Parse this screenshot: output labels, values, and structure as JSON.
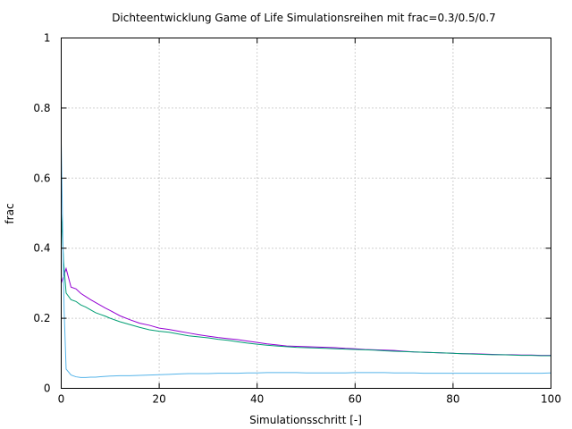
{
  "chart_data": {
    "type": "line",
    "title": "Dichteentwicklung Game of Life Simulationsreihen mit frac=0.3/0.5/0.7",
    "xlabel": "Simulationsschritt [-]",
    "ylabel": "frac",
    "xlim": [
      0,
      100
    ],
    "ylim": [
      0,
      1
    ],
    "xticks": [
      0,
      20,
      40,
      60,
      80,
      100
    ],
    "yticks": [
      0,
      0.2,
      0.4,
      0.6,
      0.8,
      1
    ],
    "xtick_labels": [
      "0",
      "20",
      "40",
      "60",
      "80",
      "100"
    ],
    "ytick_labels": [
      "0",
      "0.2",
      "0.4",
      "0.6",
      "0.8",
      "1"
    ],
    "grid": true,
    "legend": "none",
    "series": [
      {
        "color": "#9400d3",
        "x": [
          0,
          1,
          2,
          3,
          4,
          5,
          6,
          7,
          8,
          9,
          10,
          12,
          14,
          16,
          18,
          20,
          22,
          24,
          26,
          28,
          30,
          32,
          34,
          36,
          38,
          40,
          42,
          44,
          46,
          48,
          50,
          52,
          54,
          56,
          58,
          60,
          62,
          64,
          66,
          68,
          70,
          72,
          74,
          76,
          78,
          80,
          82,
          84,
          86,
          88,
          90,
          92,
          94,
          96,
          98,
          100
        ],
        "y": [
          0.3,
          0.342,
          0.289,
          0.284,
          0.271,
          0.262,
          0.253,
          0.245,
          0.237,
          0.229,
          0.222,
          0.207,
          0.196,
          0.186,
          0.18,
          0.172,
          0.168,
          0.163,
          0.158,
          0.153,
          0.149,
          0.145,
          0.142,
          0.139,
          0.135,
          0.131,
          0.127,
          0.124,
          0.121,
          0.12,
          0.119,
          0.118,
          0.117,
          0.116,
          0.114,
          0.113,
          0.111,
          0.11,
          0.109,
          0.108,
          0.106,
          0.104,
          0.103,
          0.102,
          0.101,
          0.1,
          0.099,
          0.099,
          0.098,
          0.097,
          0.096,
          0.096,
          0.095,
          0.095,
          0.094,
          0.094
        ]
      },
      {
        "color": "#009e73",
        "x": [
          0,
          0.5,
          1,
          2,
          3,
          4,
          5,
          6,
          7,
          8,
          9,
          10,
          12,
          14,
          16,
          18,
          20,
          22,
          24,
          26,
          28,
          30,
          32,
          34,
          36,
          38,
          40,
          42,
          44,
          46,
          48,
          50,
          52,
          54,
          56,
          58,
          60,
          62,
          64,
          66,
          68,
          70,
          72,
          74,
          76,
          78,
          80,
          82,
          84,
          86,
          88,
          90,
          92,
          94,
          96,
          98,
          100
        ],
        "y": [
          0.5,
          0.36,
          0.272,
          0.253,
          0.248,
          0.238,
          0.232,
          0.224,
          0.216,
          0.211,
          0.206,
          0.2,
          0.19,
          0.182,
          0.174,
          0.167,
          0.163,
          0.16,
          0.155,
          0.15,
          0.147,
          0.144,
          0.14,
          0.137,
          0.133,
          0.129,
          0.126,
          0.123,
          0.121,
          0.119,
          0.117,
          0.116,
          0.115,
          0.114,
          0.113,
          0.112,
          0.111,
          0.11,
          0.109,
          0.107,
          0.106,
          0.105,
          0.104,
          0.103,
          0.102,
          0.101,
          0.1,
          0.099,
          0.098,
          0.097,
          0.096,
          0.096,
          0.095,
          0.094,
          0.094,
          0.093,
          0.093
        ]
      },
      {
        "color": "#56b4e9",
        "x": [
          0,
          0.3,
          0.6,
          1,
          2,
          3,
          4,
          5,
          6,
          7,
          8,
          9,
          10,
          12,
          14,
          16,
          18,
          20,
          22,
          24,
          26,
          28,
          30,
          32,
          34,
          36,
          38,
          40,
          42,
          44,
          46,
          48,
          50,
          52,
          54,
          56,
          58,
          60,
          62,
          64,
          66,
          68,
          70,
          72,
          74,
          76,
          78,
          80,
          82,
          84,
          86,
          88,
          90,
          92,
          94,
          96,
          98,
          100
        ],
        "y": [
          0.7,
          0.45,
          0.22,
          0.055,
          0.038,
          0.033,
          0.031,
          0.031,
          0.032,
          0.032,
          0.033,
          0.034,
          0.035,
          0.036,
          0.036,
          0.037,
          0.038,
          0.039,
          0.04,
          0.041,
          0.042,
          0.042,
          0.042,
          0.043,
          0.043,
          0.043,
          0.044,
          0.044,
          0.045,
          0.045,
          0.045,
          0.045,
          0.044,
          0.044,
          0.044,
          0.044,
          0.044,
          0.045,
          0.045,
          0.045,
          0.045,
          0.044,
          0.044,
          0.044,
          0.043,
          0.043,
          0.043,
          0.043,
          0.043,
          0.043,
          0.043,
          0.043,
          0.043,
          0.043,
          0.043,
          0.043,
          0.043,
          0.044
        ]
      }
    ]
  }
}
